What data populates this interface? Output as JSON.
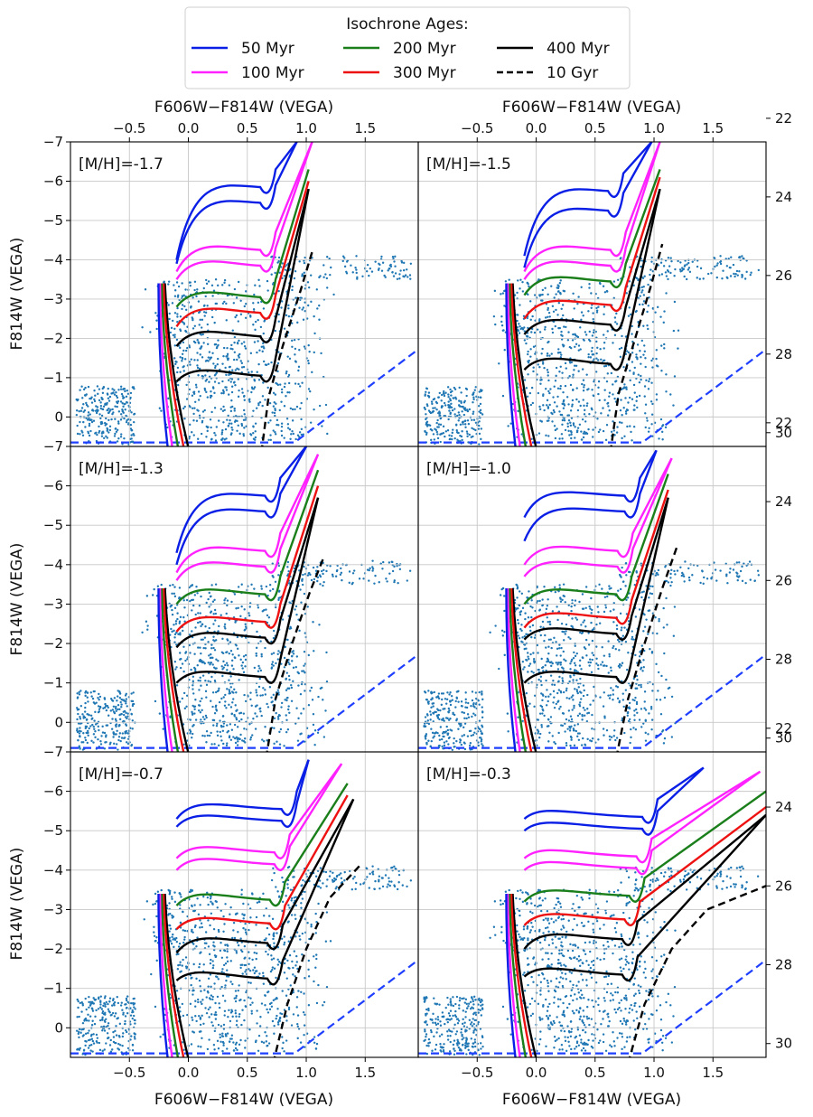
{
  "figure": {
    "top_xlabel": "F606W−F814W (VEGA)",
    "bottom_xlabel": "F606W−F814W (VEGA)",
    "left_ylabel": "F814W (VEGA)"
  },
  "legend": {
    "title": "Isochrone Ages:",
    "entries": [
      {
        "label": "50 Myr",
        "color": "#0a1fe6",
        "dash": false
      },
      {
        "label": "100 Myr",
        "color": "#ff22ff",
        "dash": false
      },
      {
        "label": "200 Myr",
        "color": "#1a7f1a",
        "dash": false
      },
      {
        "label": "300 Myr",
        "color": "#ee1111",
        "dash": false
      },
      {
        "label": "400 Myr",
        "color": "#000000",
        "dash": false
      },
      {
        "label": "10 Gyr",
        "color": "#000000",
        "dash": true
      }
    ]
  },
  "chart_data": {
    "type": "scatter",
    "description_of_type": "color-magnitude diagram panels with Hess density, scattered stars and isochrone lines",
    "xlim": [
      -1.0,
      1.95
    ],
    "ylim": [
      0.75,
      -7.0
    ],
    "x_ticks": [
      -0.5,
      0.0,
      0.5,
      1.0,
      1.5
    ],
    "x_tick_labels": [
      "−0.5",
      "0.0",
      "0.5",
      "1.0",
      "1.5"
    ],
    "y_ticks": [
      0,
      -1,
      -2,
      -3,
      -4,
      -5,
      -6,
      -7
    ],
    "y_tick_labels": [
      "0",
      "−1",
      "−2",
      "−3",
      "−4",
      "−5",
      "−6",
      "−7"
    ],
    "right_y_ticks": [
      22,
      24,
      26,
      28,
      30
    ],
    "right_y_tick_labels": [
      "22",
      "24",
      "26",
      "28",
      "30"
    ],
    "right_axis_offset": 29.6,
    "completeness_line": {
      "color": "#1f3fff",
      "points": [
        [
          -1.0,
          0.65
        ],
        [
          0.9,
          0.65
        ],
        [
          1.95,
          -1.72
        ]
      ]
    },
    "colors": {
      "scatter": "#1f77b4",
      "grid": "#c8c8c8"
    },
    "panels": [
      {
        "label": "[M/H]=-1.7",
        "isochrones": [
          {
            "age": "50 Myr",
            "mag": -5.9,
            "base": -4.0,
            "top": -7.0,
            "x_tip": 0.92,
            "x_rgb": 0.66
          },
          {
            "age": "50 Myr",
            "mag": -5.5,
            "base": -3.9,
            "top": -7.0,
            "x_tip": 0.92,
            "x_rgb": 0.66
          },
          {
            "age": "100 Myr",
            "mag": -4.3,
            "base": -3.7,
            "top": -7.0,
            "x_tip": 1.05,
            "x_rgb": 0.66
          },
          {
            "age": "100 Myr",
            "mag": -3.9,
            "base": -3.5,
            "top": -7.0,
            "x_tip": 1.05,
            "x_rgb": 0.66
          },
          {
            "age": "200 Myr",
            "mag": -3.1,
            "base": -2.8,
            "top": -6.3,
            "x_tip": 1.02,
            "x_rgb": 0.66
          },
          {
            "age": "300 Myr",
            "mag": -2.7,
            "base": -2.3,
            "top": -6.0,
            "x_tip": 1.02,
            "x_rgb": 0.66
          },
          {
            "age": "400 Myr",
            "mag": -2.1,
            "base": -1.8,
            "top": -5.8,
            "x_tip": 1.02,
            "x_rgb": 0.66
          },
          {
            "age": "400 Myr",
            "mag": -1.1,
            "base": -0.9,
            "top": -5.8,
            "x_tip": 1.02,
            "x_rgb": 0.66
          }
        ],
        "old_track": [
          [
            0.62,
            0.9
          ],
          [
            0.68,
            -0.5
          ],
          [
            0.8,
            -1.8
          ],
          [
            0.95,
            -3.2
          ],
          [
            1.05,
            -4.2
          ]
        ]
      },
      {
        "label": "[M/H]=-1.5",
        "isochrones": [
          {
            "age": "50 Myr",
            "mag": -5.8,
            "base": -4.1,
            "top": -7.0,
            "x_tip": 0.98,
            "x_rgb": 0.66
          },
          {
            "age": "50 Myr",
            "mag": -5.3,
            "base": -3.8,
            "top": -7.0,
            "x_tip": 0.98,
            "x_rgb": 0.66
          },
          {
            "age": "100 Myr",
            "mag": -4.3,
            "base": -3.7,
            "top": -7.0,
            "x_tip": 1.05,
            "x_rgb": 0.68
          },
          {
            "age": "100 Myr",
            "mag": -3.9,
            "base": -3.5,
            "top": -7.0,
            "x_tip": 1.05,
            "x_rgb": 0.68
          },
          {
            "age": "200 Myr",
            "mag": -3.5,
            "base": -3.1,
            "top": -6.3,
            "x_tip": 1.05,
            "x_rgb": 0.68
          },
          {
            "age": "300 Myr",
            "mag": -2.9,
            "base": -2.5,
            "top": -6.1,
            "x_tip": 1.05,
            "x_rgb": 0.68
          },
          {
            "age": "400 Myr",
            "mag": -2.4,
            "base": -2.1,
            "top": -5.8,
            "x_tip": 1.05,
            "x_rgb": 0.68
          },
          {
            "age": "400 Myr",
            "mag": -1.4,
            "base": -1.2,
            "top": -5.8,
            "x_tip": 1.05,
            "x_rgb": 0.68
          }
        ],
        "old_track": [
          [
            0.63,
            0.9
          ],
          [
            0.7,
            -0.6
          ],
          [
            0.84,
            -2.0
          ],
          [
            0.98,
            -3.4
          ],
          [
            1.07,
            -4.4
          ]
        ]
      },
      {
        "label": "[M/H]=-1.3",
        "isochrones": [
          {
            "age": "50 Myr",
            "mag": -5.8,
            "base": -4.3,
            "top": -7.0,
            "x_tip": 1.0,
            "x_rgb": 0.7
          },
          {
            "age": "50 Myr",
            "mag": -5.4,
            "base": -4.0,
            "top": -7.0,
            "x_tip": 1.0,
            "x_rgb": 0.7
          },
          {
            "age": "100 Myr",
            "mag": -4.4,
            "base": -3.8,
            "top": -6.8,
            "x_tip": 1.1,
            "x_rgb": 0.7
          },
          {
            "age": "100 Myr",
            "mag": -4.0,
            "base": -3.6,
            "top": -6.8,
            "x_tip": 1.1,
            "x_rgb": 0.7
          },
          {
            "age": "200 Myr",
            "mag": -3.3,
            "base": -3.0,
            "top": -6.4,
            "x_tip": 1.1,
            "x_rgb": 0.7
          },
          {
            "age": "300 Myr",
            "mag": -2.6,
            "base": -2.3,
            "top": -6.0,
            "x_tip": 1.1,
            "x_rgb": 0.7
          },
          {
            "age": "400 Myr",
            "mag": -2.2,
            "base": -1.9,
            "top": -5.7,
            "x_tip": 1.1,
            "x_rgb": 0.7
          },
          {
            "age": "400 Myr",
            "mag": -1.2,
            "base": -1.0,
            "top": -5.7,
            "x_tip": 1.1,
            "x_rgb": 0.7
          }
        ],
        "old_track": [
          [
            0.66,
            0.9
          ],
          [
            0.74,
            -0.6
          ],
          [
            0.88,
            -2.0
          ],
          [
            1.03,
            -3.3
          ],
          [
            1.15,
            -4.2
          ]
        ]
      },
      {
        "label": "[M/H]=-1.0",
        "isochrones": [
          {
            "age": "50 Myr",
            "mag": -5.8,
            "base": -5.2,
            "top": -6.9,
            "x_tip": 1.02,
            "x_rgb": 0.8
          },
          {
            "age": "50 Myr",
            "mag": -5.4,
            "base": -4.6,
            "top": -6.9,
            "x_tip": 1.02,
            "x_rgb": 0.8
          },
          {
            "age": "100 Myr",
            "mag": -4.4,
            "base": -4.0,
            "top": -6.7,
            "x_tip": 1.15,
            "x_rgb": 0.74
          },
          {
            "age": "100 Myr",
            "mag": -4.0,
            "base": -3.7,
            "top": -6.7,
            "x_tip": 1.15,
            "x_rgb": 0.74
          },
          {
            "age": "200 Myr",
            "mag": -3.3,
            "base": -3.0,
            "top": -6.3,
            "x_tip": 1.12,
            "x_rgb": 0.73
          },
          {
            "age": "300 Myr",
            "mag": -2.7,
            "base": -2.4,
            "top": -5.9,
            "x_tip": 1.12,
            "x_rgb": 0.73
          },
          {
            "age": "400 Myr",
            "mag": -2.3,
            "base": -2.1,
            "top": -5.7,
            "x_tip": 1.12,
            "x_rgb": 0.73
          },
          {
            "age": "400 Myr",
            "mag": -1.2,
            "base": -1.0,
            "top": -5.7,
            "x_tip": 1.12,
            "x_rgb": 0.73
          }
        ],
        "old_track": [
          [
            0.68,
            0.9
          ],
          [
            0.78,
            -0.6
          ],
          [
            0.92,
            -2.0
          ],
          [
            1.07,
            -3.4
          ],
          [
            1.2,
            -4.5
          ]
        ]
      },
      {
        "label": "[M/H]=-0.7",
        "isochrones": [
          {
            "age": "50 Myr",
            "mag": -5.6,
            "base": -5.3,
            "top": -6.8,
            "x_tip": 1.02,
            "x_rgb": 0.84
          },
          {
            "age": "50 Myr",
            "mag": -5.3,
            "base": -5.1,
            "top": -6.8,
            "x_tip": 1.02,
            "x_rgb": 0.84
          },
          {
            "age": "100 Myr",
            "mag": -4.5,
            "base": -4.3,
            "top": -6.7,
            "x_tip": 1.3,
            "x_rgb": 0.78
          },
          {
            "age": "100 Myr",
            "mag": -4.2,
            "base": -4.0,
            "top": -6.7,
            "x_tip": 1.3,
            "x_rgb": 0.78
          },
          {
            "age": "200 Myr",
            "mag": -3.3,
            "base": -3.1,
            "top": -6.2,
            "x_tip": 1.35,
            "x_rgb": 0.74
          },
          {
            "age": "300 Myr",
            "mag": -2.7,
            "base": -2.5,
            "top": -5.9,
            "x_tip": 1.35,
            "x_rgb": 0.74
          },
          {
            "age": "400 Myr",
            "mag": -2.2,
            "base": -1.9,
            "top": -5.8,
            "x_tip": 1.4,
            "x_rgb": 0.72
          },
          {
            "age": "400 Myr",
            "mag": -1.3,
            "base": -1.2,
            "top": -5.8,
            "x_tip": 1.4,
            "x_rgb": 0.72
          }
        ],
        "old_track": [
          [
            0.72,
            0.9
          ],
          [
            0.84,
            -0.6
          ],
          [
            1.0,
            -2.0
          ],
          [
            1.2,
            -3.3
          ],
          [
            1.45,
            -4.1
          ]
        ]
      },
      {
        "label": "[M/H]=-0.3",
        "isochrones": [
          {
            "age": "50 Myr",
            "mag": -5.4,
            "base": -5.3,
            "top": -6.6,
            "x_tip": 1.42,
            "x_rgb": 0.95
          },
          {
            "age": "50 Myr",
            "mag": -5.1,
            "base": -5.0,
            "top": -6.6,
            "x_tip": 1.42,
            "x_rgb": 0.95
          },
          {
            "age": "100 Myr",
            "mag": -4.4,
            "base": -4.3,
            "top": -6.5,
            "x_tip": 1.9,
            "x_rgb": 0.9
          },
          {
            "age": "100 Myr",
            "mag": -4.1,
            "base": -4.0,
            "top": -6.5,
            "x_tip": 1.9,
            "x_rgb": 0.9
          },
          {
            "age": "200 Myr",
            "mag": -3.4,
            "base": -3.2,
            "top": -6.0,
            "x_tip": 1.95,
            "x_rgb": 0.84
          },
          {
            "age": "300 Myr",
            "mag": -2.8,
            "base": -2.6,
            "top": -5.6,
            "x_tip": 1.95,
            "x_rgb": 0.8
          },
          {
            "age": "400 Myr",
            "mag": -2.3,
            "base": -2.0,
            "top": -5.4,
            "x_tip": 1.95,
            "x_rgb": 0.78
          },
          {
            "age": "400 Myr",
            "mag": -1.4,
            "base": -1.3,
            "top": -5.4,
            "x_tip": 1.95,
            "x_rgb": 0.78
          }
        ],
        "old_track": [
          [
            0.78,
            0.9
          ],
          [
            0.92,
            -0.6
          ],
          [
            1.15,
            -2.0
          ],
          [
            1.45,
            -3.0
          ],
          [
            1.95,
            -3.6
          ]
        ]
      }
    ]
  }
}
